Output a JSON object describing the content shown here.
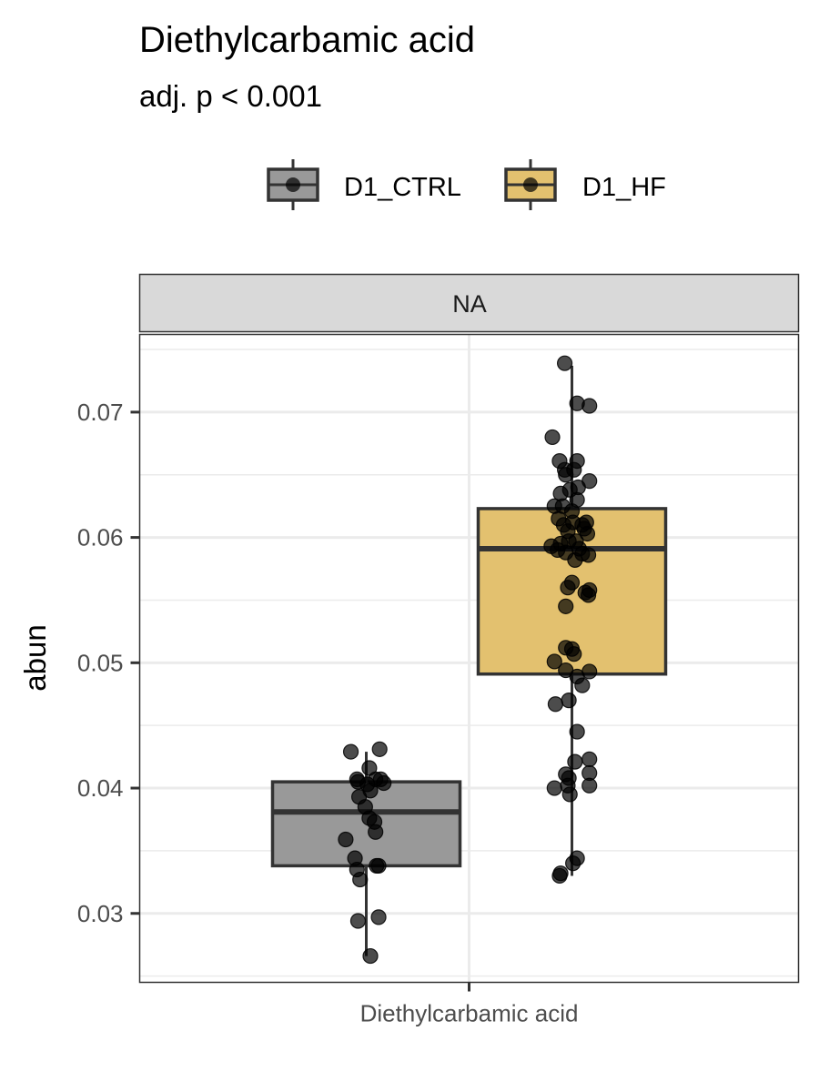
{
  "chart_data": {
    "type": "boxplot",
    "title": "Diethylcarbamic acid",
    "subtitle": "adj. p < 0.001",
    "facet_label": "NA",
    "xlabel": "",
    "ylabel": "abun",
    "categories": [
      "Diethylcarbamic acid"
    ],
    "y_ticks": [
      0.03,
      0.04,
      0.05,
      0.06,
      0.07
    ],
    "y_tick_labels": [
      "0.03",
      "0.04",
      "0.05",
      "0.06",
      "0.07"
    ],
    "ylim": [
      0.0245,
      0.0762
    ],
    "grid": true,
    "legend_position": "top",
    "series": [
      {
        "name": "D1_CTRL",
        "color": "#999999",
        "box": {
          "whisker_low": 0.0266,
          "q1": 0.0338,
          "median": 0.0381,
          "q3": 0.0405,
          "whisker_high": 0.0429
        },
        "points": [
          [
            -0.15,
            0.0429
          ],
          [
            0.13,
            0.0431
          ],
          [
            0.03,
            0.0416
          ],
          [
            -0.09,
            0.0407
          ],
          [
            -0.08,
            0.0405
          ],
          [
            0.01,
            0.0403
          ],
          [
            0.09,
            0.0407
          ],
          [
            0.14,
            0.0407
          ],
          [
            0.17,
            0.0404
          ],
          [
            0.04,
            0.0398
          ],
          [
            -0.07,
            0.0393
          ],
          [
            -0.01,
            0.0385
          ],
          [
            0.03,
            0.0376
          ],
          [
            0.08,
            0.0373
          ],
          [
            0.09,
            0.0365
          ],
          [
            -0.2,
            0.0359
          ],
          [
            -0.11,
            0.0344
          ],
          [
            -0.09,
            0.0335
          ],
          [
            0.1,
            0.0338
          ],
          [
            0.12,
            0.0338
          ],
          [
            -0.06,
            0.0327
          ],
          [
            0.12,
            0.0297
          ],
          [
            -0.08,
            0.0294
          ],
          [
            0.04,
            0.0266
          ]
        ]
      },
      {
        "name": "D1_HF",
        "color": "#E3C16F",
        "box": {
          "whisker_low": 0.033,
          "q1": 0.0491,
          "median": 0.0591,
          "q3": 0.0623,
          "whisker_high": 0.0737
        },
        "points": [
          [
            -0.07,
            0.0739
          ],
          [
            0.05,
            0.0707
          ],
          [
            0.17,
            0.0705
          ],
          [
            -0.19,
            0.068
          ],
          [
            -0.12,
            0.0661
          ],
          [
            0.05,
            0.0661
          ],
          [
            -0.07,
            0.0654
          ],
          [
            -0.06,
            0.065
          ],
          [
            0.02,
            0.0654
          ],
          [
            0.17,
            0.0645
          ],
          [
            -0.11,
            0.0635
          ],
          [
            -0.02,
            0.0638
          ],
          [
            0.06,
            0.064
          ],
          [
            0.05,
            0.063
          ],
          [
            -0.17,
            0.0625
          ],
          [
            -0.09,
            0.0625
          ],
          [
            0.0,
            0.0621
          ],
          [
            -0.13,
            0.0615
          ],
          [
            -0.08,
            0.061
          ],
          [
            0.01,
            0.0612
          ],
          [
            0.1,
            0.061
          ],
          [
            0.14,
            0.0612
          ],
          [
            -0.04,
            0.0605
          ],
          [
            0.12,
            0.0607
          ],
          [
            0.15,
            0.0603
          ],
          [
            -0.2,
            0.0593
          ],
          [
            -0.11,
            0.0595
          ],
          [
            -0.03,
            0.0597
          ],
          [
            0.04,
            0.0597
          ],
          [
            -0.14,
            0.059
          ],
          [
            0.07,
            0.0591
          ],
          [
            -0.06,
            0.0588
          ],
          [
            0.1,
            0.0587
          ],
          [
            0.16,
            0.0586
          ],
          [
            0.03,
            0.0582
          ],
          [
            -0.04,
            0.056
          ],
          [
            0.0,
            0.0564
          ],
          [
            0.13,
            0.0556
          ],
          [
            0.16,
            0.0554
          ],
          [
            0.17,
            0.0558
          ],
          [
            -0.06,
            0.0545
          ],
          [
            -0.06,
            0.0512
          ],
          [
            0.0,
            0.0511
          ],
          [
            0.02,
            0.0507
          ],
          [
            -0.17,
            0.0501
          ],
          [
            -0.06,
            0.0494
          ],
          [
            0.05,
            0.0489
          ],
          [
            0.17,
            0.0493
          ],
          [
            0.1,
            0.0482
          ],
          [
            -0.03,
            0.047
          ],
          [
            -0.16,
            0.0467
          ],
          [
            0.05,
            0.0445
          ],
          [
            0.17,
            0.0423
          ],
          [
            0.03,
            0.0421
          ],
          [
            -0.06,
            0.0411
          ],
          [
            -0.03,
            0.0408
          ],
          [
            0.17,
            0.0412
          ],
          [
            -0.17,
            0.04
          ],
          [
            -0.04,
            0.0402
          ],
          [
            0.17,
            0.0402
          ],
          [
            -0.02,
            0.0395
          ],
          [
            0.05,
            0.0344
          ],
          [
            0.01,
            0.034
          ],
          [
            -0.11,
            0.0332
          ],
          [
            -0.12,
            0.033
          ]
        ]
      }
    ]
  }
}
